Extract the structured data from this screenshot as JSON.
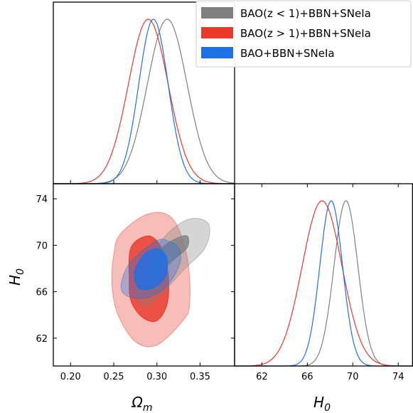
{
  "chart_data": {
    "type": "corner",
    "legend": {
      "placement": "top-right",
      "entries": [
        {
          "name": "BAO(z < 1)+BBN+SNeIa",
          "color": "#808080"
        },
        {
          "name": "BAO(z > 1)+BBN+SNeIa",
          "color": "#e8392b"
        },
        {
          "name": "BAO+BBN+SNeIa",
          "color": "#1f6fe5"
        }
      ]
    },
    "axes": {
      "omega_m": {
        "label": "Ω",
        "sub": "m",
        "range": [
          0.18,
          0.39
        ],
        "ticks": [
          0.2,
          0.25,
          0.3,
          0.35
        ],
        "tick_labels": [
          "0.20",
          "0.25",
          "0.30",
          "0.35"
        ]
      },
      "h0": {
        "label": "H",
        "sub": "0",
        "range": [
          59.6,
          75.3
        ],
        "ticks": [
          62,
          66,
          70,
          74
        ],
        "tick_labels": [
          "62",
          "66",
          "70",
          "74"
        ]
      }
    },
    "marginals": {
      "omega_m": [
        {
          "series": "BAO(z < 1)+BBN+SNeIa",
          "color": "#808080",
          "mean": 0.312,
          "sigma": 0.023
        },
        {
          "series": "BAO(z > 1)+BBN+SNeIa",
          "color": "#e8392b",
          "mean": 0.29,
          "sigma": 0.023
        },
        {
          "series": "BAO+BBN+SNeIa",
          "color": "#1f6fe5",
          "mean": 0.296,
          "sigma": 0.017
        }
      ],
      "h0": [
        {
          "series": "BAO(z < 1)+BBN+SNeIa",
          "color": "#808080",
          "mean": 69.4,
          "sigma": 1.05
        },
        {
          "series": "BAO(z > 1)+BBN+SNeIa",
          "color": "#e8392b",
          "mean": 67.3,
          "sigma": 1.75
        },
        {
          "series": "BAO+BBN+SNeIa",
          "color": "#1f6fe5",
          "mean": 68.1,
          "sigma": 1.0
        }
      ]
    },
    "contours": [
      {
        "series": "BAO(z > 1)+BBN+SNeIa",
        "color": "#e8392b",
        "outer": [
          [
            0.25,
            69.2
          ],
          [
            0.258,
            71.0
          ],
          [
            0.29,
            72.7
          ],
          [
            0.318,
            72.3
          ],
          [
            0.335,
            69.0
          ],
          [
            0.338,
            65.0
          ],
          [
            0.33,
            63.5
          ],
          [
            0.3,
            61.4
          ],
          [
            0.275,
            61.7
          ],
          [
            0.255,
            64.0
          ],
          [
            0.248,
            66.5
          ]
        ],
        "inner": [
          [
            0.268,
            67.0
          ],
          [
            0.27,
            69.8
          ],
          [
            0.29,
            70.8
          ],
          [
            0.305,
            69.8
          ],
          [
            0.313,
            67.5
          ],
          [
            0.312,
            65.0
          ],
          [
            0.3,
            63.5
          ],
          [
            0.283,
            63.8
          ],
          [
            0.27,
            65.2
          ]
        ]
      },
      {
        "series": "BAO(z < 1)+BBN+SNeIa",
        "color": "#808080",
        "outer": [
          [
            0.275,
            66.3
          ],
          [
            0.29,
            68.8
          ],
          [
            0.315,
            71.2
          ],
          [
            0.34,
            72.3
          ],
          [
            0.36,
            71.8
          ],
          [
            0.356,
            69.8
          ],
          [
            0.33,
            67.8
          ],
          [
            0.305,
            65.8
          ],
          [
            0.285,
            64.8
          ]
        ],
        "inner": [
          [
            0.293,
            68.3
          ],
          [
            0.305,
            69.7
          ],
          [
            0.32,
            70.5
          ],
          [
            0.335,
            70.8
          ],
          [
            0.335,
            69.8
          ],
          [
            0.32,
            68.8
          ],
          [
            0.302,
            67.6
          ],
          [
            0.295,
            67.5
          ]
        ]
      },
      {
        "series": "BAO+BBN+SNeIa",
        "color": "#1f6fe5",
        "outer": [
          [
            0.259,
            66.8
          ],
          [
            0.27,
            68.6
          ],
          [
            0.3,
            70.4
          ],
          [
            0.315,
            70.3
          ],
          [
            0.325,
            69.8
          ],
          [
            0.327,
            68.5
          ],
          [
            0.315,
            66.8
          ],
          [
            0.3,
            65.8
          ],
          [
            0.28,
            65.4
          ],
          [
            0.262,
            65.8
          ]
        ],
        "inner": [
          [
            0.274,
            67.7
          ],
          [
            0.285,
            69.2
          ],
          [
            0.3,
            69.7
          ],
          [
            0.311,
            69.0
          ],
          [
            0.311,
            67.5
          ],
          [
            0.302,
            66.6
          ],
          [
            0.29,
            66.2
          ],
          [
            0.278,
            66.4
          ]
        ]
      }
    ]
  }
}
